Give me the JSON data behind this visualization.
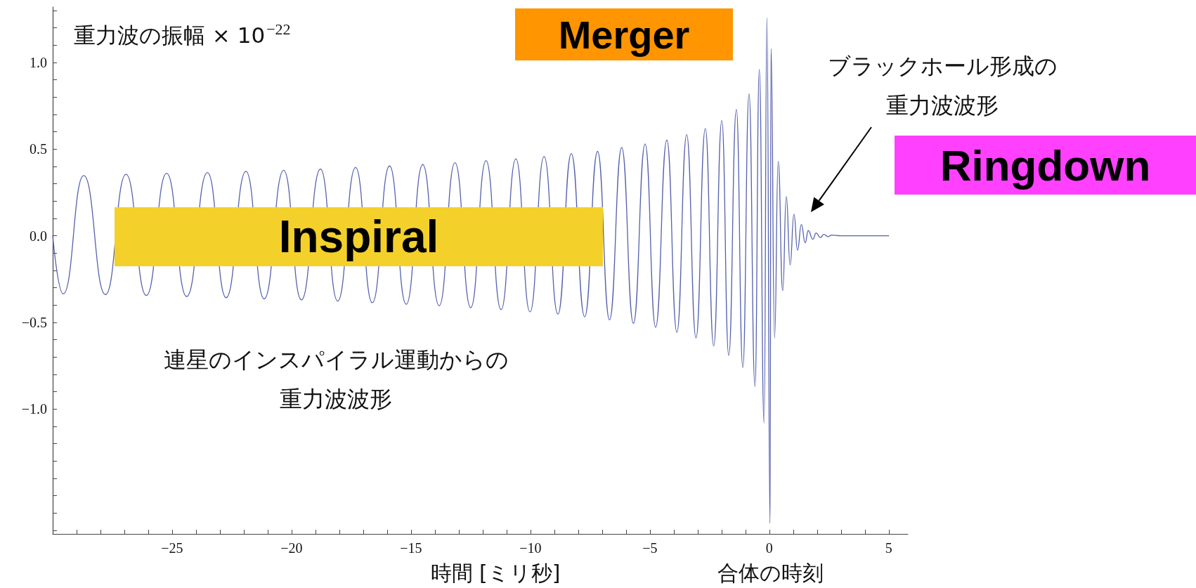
{
  "chart_data": {
    "type": "line",
    "ylabel": "重力波の振幅 × 10$^{−22}$",
    "xlabel": "時間 [ミリ秒]",
    "annotations": [
      "Inspiral",
      "Merger",
      "Ringdown",
      "連星のインスパイラル運動からの重力波波形",
      "ブラックホール形成の重力波波形",
      "合体の時刻"
    ],
    "marker": "none",
    "xlim": [
      -30,
      5.8
    ],
    "xticks": [
      {
        "value": -29,
        "label": null
      },
      {
        "value": -28,
        "label": null
      },
      {
        "value": -27,
        "label": null
      },
      {
        "value": -26,
        "label": null
      },
      {
        "value": -25,
        "label": "−25"
      },
      {
        "value": -24,
        "label": null
      },
      {
        "value": -23,
        "label": null
      },
      {
        "value": -22,
        "label": null
      },
      {
        "value": -21,
        "label": null
      },
      {
        "value": -20,
        "label": "−20"
      },
      {
        "value": -19,
        "label": null
      },
      {
        "value": -18,
        "label": null
      },
      {
        "value": -17,
        "label": null
      },
      {
        "value": -16,
        "label": null
      },
      {
        "value": -15,
        "label": "−15"
      },
      {
        "value": -14,
        "label": null
      },
      {
        "value": -13,
        "label": null
      },
      {
        "value": -12,
        "label": null
      },
      {
        "value": -11,
        "label": null
      },
      {
        "value": -10,
        "label": "−10"
      },
      {
        "value": -9,
        "label": null
      },
      {
        "value": -8,
        "label": null
      },
      {
        "value": -7,
        "label": null
      },
      {
        "value": -6,
        "label": null
      },
      {
        "value": -5,
        "label": "−5"
      },
      {
        "value": -4,
        "label": null
      },
      {
        "value": -3,
        "label": null
      },
      {
        "value": -2,
        "label": null
      },
      {
        "value": -1,
        "label": null
      },
      0,
      {
        "value": 1,
        "label": null
      },
      {
        "value": 2,
        "label": null
      },
      {
        "value": 3,
        "label": null
      },
      {
        "value": 4,
        "label": null
      },
      5
    ],
    "ylim": [
      -1.72,
      1.32
    ],
    "yticks": [
      {
        "value": -1.7,
        "label": null
      },
      {
        "value": -1.6,
        "label": null
      },
      {
        "value": -1.5,
        "label": null
      },
      {
        "value": -1.4,
        "label": null
      },
      {
        "value": -1.3,
        "label": null
      },
      {
        "value": -1.2,
        "label": null
      },
      {
        "value": -1.1,
        "label": null
      },
      {
        "value": -1,
        "label": "−1.0"
      },
      {
        "value": -0.9,
        "label": null
      },
      {
        "value": -0.8,
        "label": null
      },
      {
        "value": -0.7,
        "label": null
      },
      {
        "value": -0.6,
        "label": null
      },
      {
        "value": -0.5,
        "label": "−0.5"
      },
      {
        "value": -0.4,
        "label": null
      },
      {
        "value": -0.3,
        "label": null
      },
      {
        "value": -0.2,
        "label": null
      },
      {
        "value": -0.1,
        "label": null
      },
      {
        "value": 0,
        "label": "0.0"
      },
      {
        "value": 0.1,
        "label": null
      },
      {
        "value": 0.2,
        "label": null
      },
      {
        "value": 0.3,
        "label": null
      },
      {
        "value": 0.4,
        "label": null
      },
      0.5,
      {
        "value": 0.6,
        "label": null
      },
      {
        "value": 0.7,
        "label": null
      },
      {
        "value": 0.8,
        "label": null
      },
      {
        "value": 0.9,
        "label": null
      },
      {
        "value": 1,
        "label": "1.0"
      },
      {
        "value": 1.1,
        "label": null
      },
      {
        "value": 1.2,
        "label": null
      },
      {
        "value": 1.3,
        "label": null
      }
    ],
    "series": [
      {
        "color": "#5561ad",
        "x": [
          -30,
          -29.56,
          -28.7,
          -27.79,
          -26.93,
          -26.08,
          -25.23,
          -24.39,
          -23.52,
          -22.74,
          -21.91,
          -21.15,
          -20.33,
          -19.59,
          -18.79,
          -18.07,
          -17.32,
          -16.62,
          -15.9,
          -15.2,
          -14.51,
          -13.82,
          -13.16,
          -12.5,
          -11.86,
          -11.23,
          -10.61,
          -10.02,
          -9.43,
          -8.85,
          -8.29,
          -7.73,
          -7.19,
          -6.69,
          -6.18,
          -5.69,
          -5.2,
          -4.76,
          -4.29,
          -3.87,
          -3.46,
          -3.07,
          -2.68,
          -2.33,
          -1.99,
          -1.7,
          -1.38,
          -1.11,
          -0.85,
          -0.6,
          -0.42,
          -0.22,
          -0.1,
          0.03,
          0.07,
          0.22,
          0.37,
          0.56,
          0.71,
          0.87,
          1.03,
          1.18,
          1.34,
          1.5,
          1.63,
          1.82,
          1.96,
          2.14,
          2.28,
          2.46,
          2.6,
          3.0,
          5.0
        ],
        "values": [
          0,
          -0.335,
          0.348,
          -0.339,
          0.355,
          -0.344,
          0.361,
          -0.35,
          0.365,
          -0.357,
          0.372,
          -0.364,
          0.378,
          -0.37,
          0.385,
          -0.377,
          0.394,
          -0.386,
          0.403,
          -0.395,
          0.411,
          -0.403,
          0.422,
          -0.414,
          0.434,
          -0.426,
          0.444,
          -0.439,
          0.457,
          -0.452,
          0.474,
          -0.468,
          0.487,
          -0.485,
          0.51,
          -0.505,
          0.53,
          -0.528,
          0.553,
          -0.557,
          0.584,
          -0.59,
          0.619,
          -0.636,
          0.665,
          -0.69,
          0.73,
          -0.76,
          0.82,
          -0.87,
          0.96,
          -1.08,
          1.26,
          -1.66,
          1.08,
          -0.59,
          0.43,
          -0.316,
          0.227,
          -0.168,
          0.125,
          -0.083,
          0.065,
          -0.04,
          0.03,
          -0.02,
          0.016,
          -0.01,
          0.008,
          -0.005,
          0.004,
          0,
          0
        ]
      }
    ]
  }
}
